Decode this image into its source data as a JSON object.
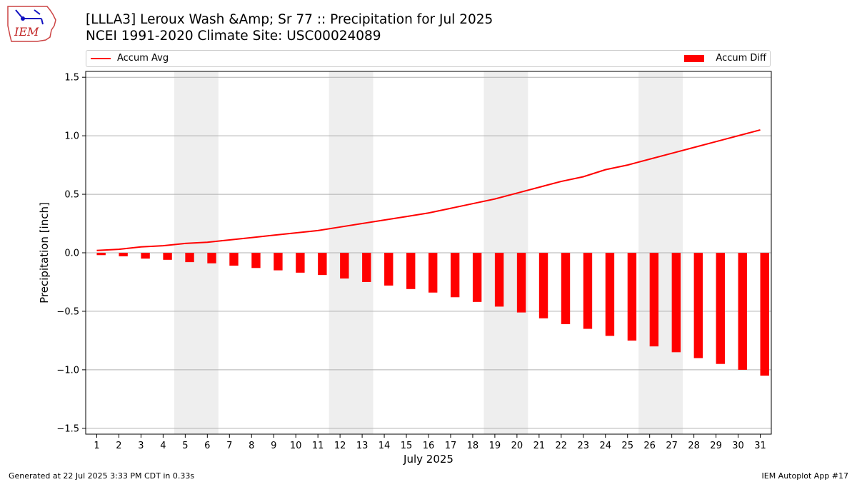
{
  "logo": {
    "text": "IEM"
  },
  "header": {
    "title_line1": "[LLLA3] Leroux Wash &Amp; Sr 77 :: Precipitation for Jul 2025",
    "title_line2": "NCEI 1991-2020 Climate Site: USC00024089"
  },
  "legend": {
    "line_label": "Accum Avg",
    "bar_label": "Accum Diff"
  },
  "footer": {
    "left": "Generated at 22 Jul 2025 3:33 PM CDT in 0.33s",
    "right": "IEM Autoplot App #17"
  },
  "colors": {
    "series": "#ff0000",
    "weekend_shade": "#eeeeee",
    "grid": "#b0b0b0"
  },
  "chart_data": {
    "type": "bar",
    "title": "[LLLA3] Leroux Wash &Amp; Sr 77 :: Precipitation for Jul 2025",
    "subtitle": "NCEI 1991-2020 Climate Site: USC00024089",
    "xlabel": "July 2025",
    "ylabel": "Precipitation [inch]",
    "categories": [
      "1",
      "2",
      "3",
      "4",
      "5",
      "6",
      "7",
      "8",
      "9",
      "10",
      "11",
      "12",
      "13",
      "14",
      "15",
      "16",
      "17",
      "18",
      "19",
      "20",
      "21",
      "22",
      "23",
      "24",
      "25",
      "26",
      "27",
      "28",
      "29",
      "30",
      "31"
    ],
    "ylim": [
      -1.55,
      1.55
    ],
    "yticks": [
      -1.5,
      -1.0,
      -0.5,
      0.0,
      0.5,
      1.0,
      1.5
    ],
    "ytick_labels": [
      "−1.5",
      "−1.0",
      "−0.5",
      "0.0",
      "0.5",
      "1.0",
      "1.5"
    ],
    "grid": "horizontal",
    "legend_position": "top",
    "weekend_shading": [
      [
        5,
        6
      ],
      [
        12,
        13
      ],
      [
        19,
        20
      ],
      [
        26,
        27
      ]
    ],
    "series": [
      {
        "name": "Accum Avg",
        "type": "line",
        "values": [
          0.02,
          0.03,
          0.05,
          0.06,
          0.08,
          0.09,
          0.11,
          0.13,
          0.15,
          0.17,
          0.19,
          0.22,
          0.25,
          0.28,
          0.31,
          0.34,
          0.38,
          0.42,
          0.46,
          0.51,
          0.56,
          0.61,
          0.65,
          0.71,
          0.75,
          0.8,
          0.85,
          0.9,
          0.95,
          1.0,
          1.05
        ]
      },
      {
        "name": "Accum Diff",
        "type": "bar",
        "values": [
          -0.02,
          -0.03,
          -0.05,
          -0.06,
          -0.08,
          -0.09,
          -0.11,
          -0.13,
          -0.15,
          -0.17,
          -0.19,
          -0.22,
          -0.25,
          -0.28,
          -0.31,
          -0.34,
          -0.38,
          -0.42,
          -0.46,
          -0.51,
          -0.56,
          -0.61,
          -0.65,
          -0.71,
          -0.75,
          -0.8,
          -0.85,
          -0.9,
          -0.95,
          -1.0,
          -1.05
        ]
      }
    ]
  }
}
